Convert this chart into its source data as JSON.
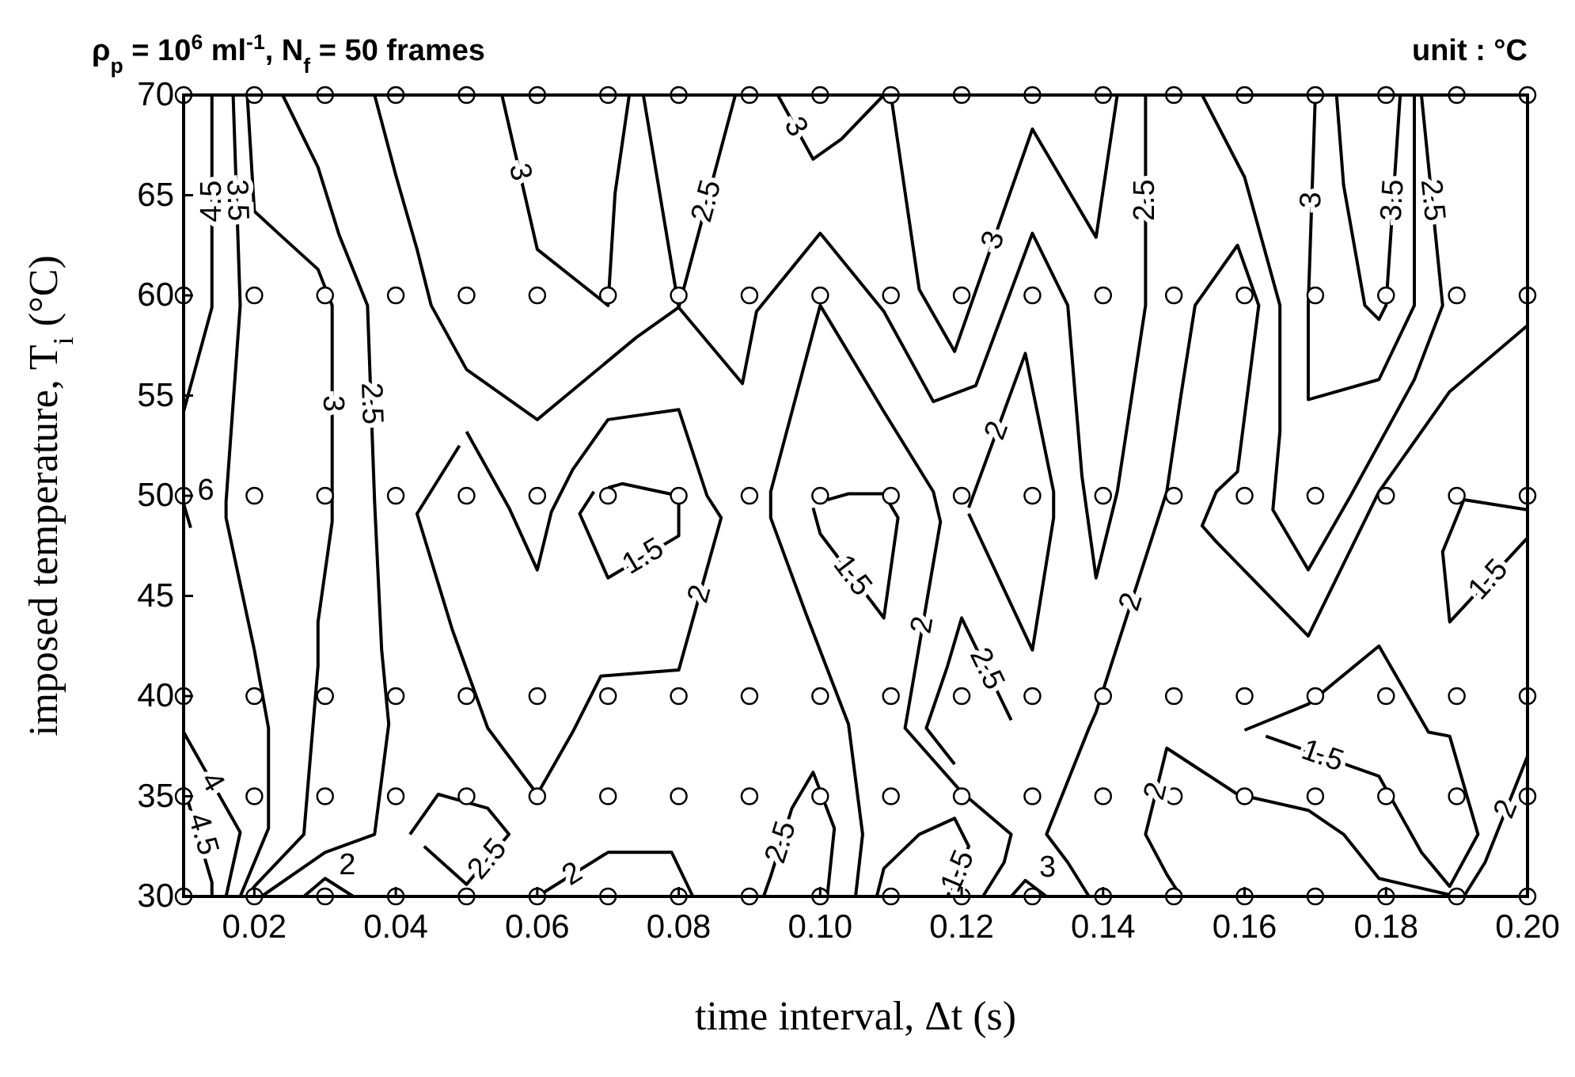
{
  "chart_data": {
    "type": "line",
    "title": "ρ$_{p}$ = 10$^{6}$ ml$^{-1}$, N$_{f}$ = 50 frames",
    "subtitle": "unit :  °C",
    "xlabel": "time interval, Δt (s)",
    "ylabel": "imposed temperature, T$_{i}$ (°C)",
    "xlim": [
      0.01,
      0.2
    ],
    "ylim": [
      30,
      70
    ],
    "xticks": [
      0.02,
      0.04,
      0.06,
      0.08,
      {
        "value": 0.1,
        "label": "0.10"
      },
      0.12,
      0.14,
      0.16,
      0.18,
      {
        "value": 0.2,
        "label": "0.20"
      }
    ],
    "yticks": [
      30,
      35,
      40,
      45,
      50,
      55,
      60,
      65,
      70
    ],
    "line_style": "solid",
    "series": [
      {
        "name": "4.5",
        "color": "#000000",
        "x": [
          0.01,
          0.014,
          0.014
        ],
        "values": [
          54.2,
          59.4,
          70
        ]
      },
      {
        "name": "3.5",
        "color": "#000000",
        "x": [
          0.017,
          0.018,
          0.016,
          0.016,
          0.02,
          0.022,
          0.022,
          0.018
        ],
        "values": [
          70,
          59.5,
          49.7,
          48.9,
          42.3,
          38.4,
          33.4,
          30
        ]
      },
      {
        "name": "3",
        "color": "#000000",
        "x": [
          0.019,
          0.02,
          0.024,
          0.029,
          0.031,
          0.031,
          0.031,
          0.029,
          0.029,
          0.027,
          0.02,
          0.019
        ],
        "values": [
          70,
          64.2,
          62.9,
          61.3,
          59.5,
          49.7,
          48.7,
          43.7,
          41.5,
          33.1,
          30.5,
          30
        ]
      },
      {
        "name": "2.5",
        "color": "#000000",
        "x": [
          0.024,
          0.029,
          0.032,
          0.036,
          0.037,
          0.038,
          0.039,
          0.037,
          0.03,
          0.021
        ],
        "values": [
          70,
          66.4,
          63.0,
          59.5,
          49.7,
          42.3,
          38.6,
          33.1,
          32.2,
          30
        ]
      },
      {
        "name": "4",
        "color": "#000000",
        "x": [
          0.01,
          0.018,
          0.016
        ],
        "values": [
          38.2,
          33.2,
          30
        ]
      },
      {
        "name": "4.5",
        "color": "#000000",
        "x": [
          0.01,
          0.014,
          0.014
        ],
        "values": [
          35.5,
          30.7,
          30
        ]
      },
      {
        "name": "6",
        "color": "#000000",
        "x": [
          0.01,
          0.011
        ],
        "values": [
          49.6,
          48.4
        ]
      },
      {
        "name": "2.5",
        "color": "#000000",
        "x": [
          0.037,
          0.04,
          0.043,
          0.045,
          0.05,
          0.06,
          0.074,
          0.08,
          0.089,
          0.091,
          0.1,
          0.109,
          0.116,
          0.122,
          0.13,
          0.135,
          0.137,
          0.139,
          0.142,
          0.146,
          0.146
        ],
        "values": [
          70,
          66.0,
          62.3,
          59.5,
          56.3,
          53.8,
          57.9,
          59.4,
          55.6,
          59.2,
          63.1,
          59.2,
          54.7,
          55.5,
          63.1,
          59.5,
          51.0,
          45.9,
          50.2,
          59.5,
          70
        ]
      },
      {
        "name": "2.5",
        "color": "#000000",
        "x": [
          0.075,
          0.08,
          0.088
        ],
        "values": [
          70,
          59.4,
          70
        ]
      },
      {
        "name": "3",
        "color": "#000000",
        "x": [
          0.055,
          0.06,
          0.07,
          0.071,
          0.073
        ],
        "values": [
          70,
          62.3,
          59.5,
          65.1,
          70
        ]
      },
      {
        "name": "3",
        "color": "#000000",
        "x": [
          0.094,
          0.099,
          0.103,
          0.109
        ],
        "values": [
          70,
          66.8,
          67.8,
          70
        ]
      },
      {
        "name": "3",
        "color": "#000000",
        "x": [
          0.11,
          0.114,
          0.119,
          0.13,
          0.139,
          0.142
        ],
        "values": [
          70,
          60.3,
          57.2,
          68.3,
          62.9,
          70
        ]
      },
      {
        "name": "2",
        "color": "#000000",
        "x": [
          0.05,
          0.056,
          0.06,
          0.062,
          0.065,
          0.07,
          0.08,
          0.084,
          0.086,
          0.08,
          0.069,
          0.065,
          0.06,
          0.053,
          0.048,
          0.043,
          0.049
        ],
        "values": [
          53.2,
          49.4,
          46.3,
          49.2,
          51.3,
          53.8,
          54.3,
          50.0,
          48.9,
          41.3,
          41.0,
          38.2,
          35.1,
          38.4,
          43.3,
          49.1,
          52.5
        ]
      },
      {
        "name": "1.5",
        "color": "#000000",
        "x": [
          0.068,
          0.066,
          0.07,
          0.08,
          0.08,
          0.072,
          0.07
        ],
        "values": [
          50.2,
          49.1,
          45.9,
          48.0,
          50.0,
          50.6,
          50.4
        ]
      },
      {
        "name": "1.5",
        "color": "#000000",
        "x": [
          0.099,
          0.1,
          0.109,
          0.111,
          0.109,
          0.104,
          0.101
        ],
        "values": [
          49.4,
          48.1,
          43.9,
          48.9,
          50.1,
          50.1,
          49.8
        ]
      },
      {
        "name": "2",
        "color": "#000000",
        "x": [
          0.105,
          0.106,
          0.104,
          0.098,
          0.093,
          0.093,
          0.1,
          0.109,
          0.116,
          0.117,
          0.112,
          0.12,
          0.127,
          0.126,
          0.123
        ],
        "values": [
          30,
          33.1,
          38.6,
          44.1,
          48.9,
          50.2,
          59.5,
          54.2,
          50.2,
          48.7,
          38.4,
          35.2,
          33.1,
          31.7,
          30
        ]
      },
      {
        "name": "2",
        "color": "#000000",
        "x": [
          0.121,
          0.129,
          0.133,
          0.133,
          0.13,
          0.121
        ],
        "values": [
          49.4,
          57.1,
          50.2,
          48.9,
          42.3,
          49.1
        ]
      },
      {
        "name": "2.5",
        "color": "#000000",
        "x": [
          0.127,
          0.12,
          0.118,
          0.115,
          0.119
        ],
        "values": [
          38.8,
          43.9,
          41.5,
          38.4,
          36.6
        ]
      },
      {
        "name": "2.5",
        "color": "#000000",
        "x": [
          0.092,
          0.093,
          0.096,
          0.099,
          0.102,
          0.101
        ],
        "values": [
          30,
          31.0,
          34.4,
          36.2,
          33.4,
          30
        ]
      },
      {
        "name": "2",
        "color": "#000000",
        "x": [
          0.06,
          0.07,
          0.079,
          0.082
        ],
        "values": [
          30,
          32.2,
          32.2,
          30
        ]
      },
      {
        "name": "2",
        "color": "#000000",
        "x": [
          0.027,
          0.03,
          0.034
        ],
        "values": [
          30,
          30.9,
          30
        ]
      },
      {
        "name": "2.5",
        "color": "#000000",
        "x": [
          0.042,
          0.046,
          0.053,
          0.056,
          0.05,
          0.044
        ],
        "values": [
          33.1,
          35.1,
          34.4,
          33.1,
          30.6,
          32.5
        ]
      },
      {
        "name": "1.5",
        "color": "#000000",
        "x": [
          0.108,
          0.109,
          0.114,
          0.119,
          0.121,
          0.118
        ],
        "values": [
          30,
          31.4,
          33.1,
          33.9,
          32.5,
          30
        ]
      },
      {
        "name": "3",
        "color": "#000000",
        "x": [
          0.127,
          0.129,
          0.132
        ],
        "values": [
          30,
          30.8,
          30
        ]
      },
      {
        "name": "2",
        "color": "#000000",
        "x": [
          0.138,
          0.135,
          0.132,
          0.138,
          0.139,
          0.149,
          0.151,
          0.153,
          0.159,
          0.162,
          0.159,
          0.156,
          0.154,
          0.156,
          0.169,
          0.179,
          0.189,
          0.2
        ],
        "values": [
          30,
          31.7,
          33.1,
          38.4,
          39.2,
          50.2,
          55.0,
          59.5,
          62.5,
          59.5,
          51.2,
          50.2,
          48.5,
          47.7,
          43.0,
          50.2,
          55.2,
          58.5
        ]
      },
      {
        "name": "2.5",
        "color": "#000000",
        "x": [
          0.154,
          0.16,
          0.165,
          0.165,
          0.164,
          0.169,
          0.175,
          0.184,
          0.188,
          0.185
        ],
        "values": [
          70,
          65.9,
          59.5,
          53.2,
          49.3,
          46.3,
          50.0,
          55.8,
          59.5,
          70
        ]
      },
      {
        "name": "3",
        "color": "#000000",
        "x": [
          0.17,
          0.169,
          0.169,
          0.179,
          0.184,
          0.184
        ],
        "values": [
          70,
          59.5,
          54.8,
          55.8,
          59.5,
          70
        ]
      },
      {
        "name": "3.5",
        "color": "#000000",
        "x": [
          0.173,
          0.174,
          0.177,
          0.179,
          0.18,
          0.182
        ],
        "values": [
          70,
          65.5,
          59.5,
          58.8,
          59.5,
          70
        ]
      },
      {
        "name": "1.5",
        "color": "#000000",
        "x": [
          0.2,
          0.191,
          0.188,
          0.189,
          0.2
        ],
        "values": [
          49.3,
          49.8,
          47.2,
          43.7,
          47.9
        ]
      },
      {
        "name": "1.5",
        "color": "#000000",
        "x": [
          0.16,
          0.169,
          0.179,
          0.186,
          0.189,
          0.193,
          0.189,
          0.185,
          0.179,
          0.163
        ],
        "values": [
          38.3,
          39.6,
          42.5,
          38.2,
          38.0,
          33.1,
          30.5,
          32.2,
          36.0,
          38.0
        ]
      },
      {
        "name": "2",
        "color": "#000000",
        "x": [
          0.151,
          0.149,
          0.146,
          0.149,
          0.159,
          0.169,
          0.174,
          0.179,
          0.19
        ],
        "values": [
          30,
          31.1,
          33.1,
          37.4,
          35.1,
          34.3,
          33.1,
          30.9,
          30
        ]
      },
      {
        "name": "2",
        "color": "#000000",
        "x": [
          0.2,
          0.194,
          0.191
        ],
        "values": [
          37.0,
          31.7,
          30
        ]
      },
      {
        "type": "scatter",
        "color": "#ffffff",
        "marker": "circle",
        "x": [
          0.01,
          0.02,
          0.03,
          0.04,
          0.05,
          0.06,
          0.07,
          0.08,
          0.09,
          0.1,
          0.11,
          0.12,
          0.13,
          0.14,
          0.15,
          0.16,
          0.17,
          0.18,
          0.19,
          0.2,
          0.01,
          0.02,
          0.03,
          0.04,
          0.05,
          0.06,
          0.07,
          0.08,
          0.09,
          0.1,
          0.11,
          0.12,
          0.13,
          0.14,
          0.15,
          0.16,
          0.17,
          0.18,
          0.19,
          0.2,
          0.01,
          0.02,
          0.03,
          0.04,
          0.05,
          0.06,
          0.07,
          0.08,
          0.09,
          0.1,
          0.11,
          0.12,
          0.13,
          0.14,
          0.15,
          0.16,
          0.17,
          0.18,
          0.19,
          0.2,
          0.01,
          0.02,
          0.03,
          0.04,
          0.05,
          0.06,
          0.07,
          0.08,
          0.09,
          0.1,
          0.11,
          0.12,
          0.13,
          0.14,
          0.15,
          0.16,
          0.17,
          0.18,
          0.19,
          0.2,
          0.01,
          0.02,
          0.03,
          0.04,
          0.05,
          0.06,
          0.07,
          0.08,
          0.09,
          0.1,
          0.11,
          0.12,
          0.13,
          0.14,
          0.15,
          0.16,
          0.17,
          0.18,
          0.19,
          0.2,
          0.01,
          0.02,
          0.03,
          0.04,
          0.05,
          0.06,
          0.07,
          0.08,
          0.09,
          0.1,
          0.11,
          0.12,
          0.13,
          0.14,
          0.15,
          0.16,
          0.17,
          0.18,
          0.19,
          0.2
        ],
        "values": [
          30,
          30,
          30,
          30,
          30,
          30,
          30,
          30,
          30,
          30,
          30,
          30,
          30,
          30,
          30,
          30,
          30,
          30,
          30,
          30,
          35,
          35,
          35,
          35,
          35,
          35,
          35,
          35,
          35,
          35,
          35,
          35,
          35,
          35,
          35,
          35,
          35,
          35,
          35,
          35,
          40,
          40,
          40,
          40,
          40,
          40,
          40,
          40,
          40,
          40,
          40,
          40,
          40,
          40,
          40,
          40,
          40,
          40,
          40,
          40,
          50,
          50,
          50,
          50,
          50,
          50,
          50,
          50,
          50,
          50,
          50,
          50,
          50,
          50,
          50,
          50,
          50,
          50,
          50,
          50,
          60,
          60,
          60,
          60,
          60,
          60,
          60,
          60,
          60,
          60,
          60,
          60,
          60,
          60,
          60,
          60,
          60,
          60,
          60,
          60,
          70,
          70,
          70,
          70,
          70,
          70,
          70,
          70,
          70,
          70,
          70,
          70,
          70,
          70,
          70,
          70,
          70,
          70,
          70,
          70
        ]
      }
    ]
  }
}
